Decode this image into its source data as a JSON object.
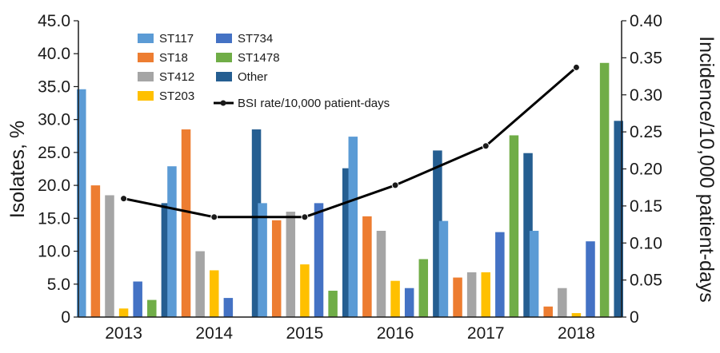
{
  "chart_data": {
    "type": "bar",
    "categories": [
      "2013",
      "2014",
      "2015",
      "2016",
      "2017",
      "2018"
    ],
    "ylabel": "Isolates, %",
    "y2label": "Incidence/10,000 patient-days",
    "ylim": [
      0,
      45
    ],
    "y2lim": [
      0,
      0.4
    ],
    "yticks": [
      "0",
      "5.0",
      "10.0",
      "15.0",
      "20.0",
      "25.0",
      "30.0",
      "35.0",
      "40.0",
      "45.0"
    ],
    "y2ticks": [
      "0",
      "0.05",
      "0.10",
      "0.15",
      "0.20",
      "0.25",
      "0.30",
      "0.35",
      "0.40"
    ],
    "grid": false,
    "legend_position": "top-left",
    "series": [
      {
        "name": "ST117",
        "color": "#5b9bd5",
        "values": [
          34.6,
          22.9,
          17.3,
          27.4,
          14.6,
          13.1
        ]
      },
      {
        "name": "ST18",
        "color": "#ed7d31",
        "values": [
          20.0,
          28.5,
          14.7,
          15.3,
          6.0,
          1.6
        ]
      },
      {
        "name": "ST412",
        "color": "#a5a5a5",
        "values": [
          18.5,
          10.0,
          16.0,
          13.1,
          6.8,
          4.4
        ]
      },
      {
        "name": "ST203",
        "color": "#ffc000",
        "values": [
          1.3,
          7.1,
          8.0,
          5.5,
          6.8,
          0.6
        ]
      },
      {
        "name": "ST734",
        "color": "#4472c4",
        "values": [
          5.4,
          2.9,
          17.3,
          4.4,
          12.9,
          11.5
        ]
      },
      {
        "name": "ST1478",
        "color": "#70ad47",
        "values": [
          2.6,
          0,
          4.0,
          8.8,
          27.6,
          38.6
        ]
      },
      {
        "name": "Other",
        "color": "#255e91",
        "values": [
          17.3,
          28.5,
          22.6,
          25.3,
          24.9,
          29.8
        ]
      }
    ],
    "line": {
      "name": "BSI rate/10,000 patient-days",
      "color": "#000000",
      "axis": "right",
      "values": [
        0.16,
        0.135,
        0.135,
        0.178,
        0.231,
        0.337
      ]
    }
  }
}
